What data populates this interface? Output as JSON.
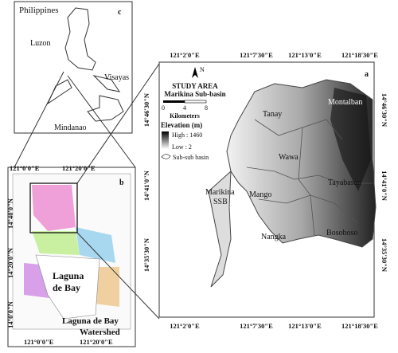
{
  "panel_c": {
    "title": "Philippines",
    "letter": "c",
    "labels": [
      "Luzon",
      "Visayas",
      "Mindanao"
    ]
  },
  "panel_b": {
    "letter": "b",
    "top_ticks": [
      "121°0'0\"E",
      "121°20'0\"E"
    ],
    "bottom_ticks": [
      "121°0'0\"E",
      "121°20'0\"E"
    ],
    "left_ticks": [
      "14°40'0\"N",
      "14°20'0\"N",
      "14°0'0\"N"
    ],
    "lake_label": [
      "Laguna",
      "de Bay"
    ],
    "watershed_label": [
      "Laguna de Bay",
      "Watershed"
    ]
  },
  "panel_a": {
    "letter": "a",
    "top_ticks": [
      "121°2'0\"E",
      "121°7'30\"E",
      "121°13'0\"E",
      "121°18'30\"E"
    ],
    "bottom_ticks": [
      "121°2'0\"E",
      "121°7'30\"E",
      "121°13'0\"E",
      "121°18'30\"E"
    ],
    "left_ticks": [
      "14°46'30\"N",
      "14°41'0\"N",
      "14°35'30\"N"
    ],
    "right_ticks": [
      "14°46'30\"N",
      "14°41'0\"N",
      "14°35'30\"N"
    ],
    "legend": {
      "north": "N",
      "title": "STUDY AREA",
      "subtitle": "Marikina Sub-basin",
      "scale": [
        "0",
        "4",
        "8"
      ],
      "scale_unit": "Kilometers",
      "elevation_title": "Elevation (m)",
      "high": "High : 1460",
      "low": "Low : 2",
      "subbasin": "Sub-sub basin"
    },
    "basins": [
      "Tanay",
      "Montalban",
      "Wawa",
      "Mango",
      "Tayabasan",
      "Nangka",
      "Bosoboso"
    ],
    "ssb_label": [
      "Marikina",
      "SSB"
    ]
  }
}
